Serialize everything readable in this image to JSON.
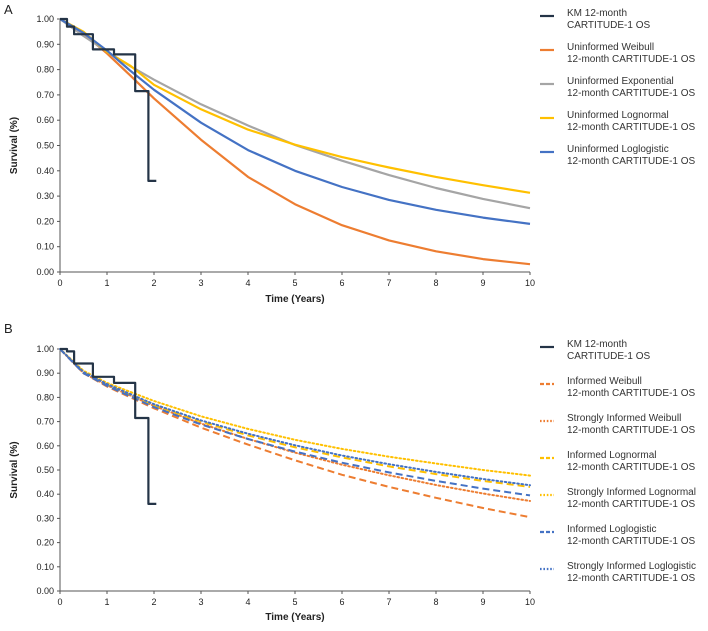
{
  "chart_data": [
    {
      "panel_label": "A",
      "type": "line",
      "xlabel": "Time (Years)",
      "ylabel": "Survival (%)",
      "xlim": [
        0,
        10
      ],
      "ylim": [
        0,
        1
      ],
      "x_ticks": [
        "0",
        "1",
        "2",
        "3",
        "4",
        "5",
        "6",
        "7",
        "8",
        "9",
        "10"
      ],
      "y_ticks": [
        "0.00",
        "0.10",
        "0.20",
        "0.30",
        "0.40",
        "0.50",
        "0.60",
        "0.70",
        "0.80",
        "0.90",
        "1.00"
      ],
      "series": [
        {
          "name_line1": "KM 12-month",
          "name_line2": "CARTITUDE-1 OS",
          "color": "#243447",
          "style": "step",
          "points": [
            [
              0,
              1.0
            ],
            [
              0.15,
              1.0
            ],
            [
              0.15,
              0.97
            ],
            [
              0.3,
              0.97
            ],
            [
              0.3,
              0.94
            ],
            [
              0.7,
              0.94
            ],
            [
              0.7,
              0.88
            ],
            [
              1.15,
              0.88
            ],
            [
              1.15,
              0.86
            ],
            [
              1.6,
              0.86
            ],
            [
              1.6,
              0.715
            ],
            [
              1.88,
              0.715
            ],
            [
              1.88,
              0.36
            ],
            [
              2.05,
              0.36
            ]
          ]
        },
        {
          "name_line1": "Uninformed Weibull",
          "name_line2": "12-month CARTITUDE-1 OS",
          "color": "#ED7D31",
          "style": "solid",
          "points": [
            [
              0,
              1.0
            ],
            [
              0.5,
              0.942
            ],
            [
              1,
              0.864
            ],
            [
              1.5,
              0.776
            ],
            [
              2,
              0.686
            ],
            [
              3,
              0.523
            ],
            [
              4,
              0.376
            ],
            [
              5,
              0.268
            ],
            [
              6,
              0.185
            ],
            [
              7,
              0.125
            ],
            [
              8,
              0.082
            ],
            [
              9,
              0.051
            ],
            [
              10,
              0.031
            ]
          ]
        },
        {
          "name_line1": "Uninformed Exponential",
          "name_line2": "12-month CARTITUDE-1 OS",
          "color": "#A5A5A5",
          "style": "solid",
          "points": [
            [
              0,
              1.0
            ],
            [
              0.5,
              0.933
            ],
            [
              1,
              0.871
            ],
            [
              1.5,
              0.813
            ],
            [
              2,
              0.76
            ],
            [
              3,
              0.663
            ],
            [
              4,
              0.579
            ],
            [
              5,
              0.502
            ],
            [
              6,
              0.44
            ],
            [
              7,
              0.383
            ],
            [
              8,
              0.332
            ],
            [
              9,
              0.289
            ],
            [
              10,
              0.252
            ]
          ]
        },
        {
          "name_line1": "Uninformed Lognormal",
          "name_line2": "12-month CARTITUDE-1 OS",
          "color": "#FFC000",
          "style": "solid",
          "points": [
            [
              0,
              1.0
            ],
            [
              0.5,
              0.95
            ],
            [
              1,
              0.87
            ],
            [
              1.5,
              0.815
            ],
            [
              2,
              0.74
            ],
            [
              3,
              0.643
            ],
            [
              4,
              0.563
            ],
            [
              5,
              0.503
            ],
            [
              6,
              0.454
            ],
            [
              7,
              0.413
            ],
            [
              8,
              0.376
            ],
            [
              9,
              0.343
            ],
            [
              10,
              0.313
            ]
          ]
        },
        {
          "name_line1": "Uninformed Loglogistic",
          "name_line2": "12-month CARTITUDE-1 OS",
          "color": "#4472C4",
          "style": "solid",
          "points": [
            [
              0,
              1.0
            ],
            [
              0.5,
              0.945
            ],
            [
              1,
              0.875
            ],
            [
              1.5,
              0.795
            ],
            [
              2,
              0.72
            ],
            [
              3,
              0.59
            ],
            [
              4,
              0.482
            ],
            [
              5,
              0.4
            ],
            [
              6,
              0.336
            ],
            [
              7,
              0.285
            ],
            [
              8,
              0.246
            ],
            [
              9,
              0.215
            ],
            [
              10,
              0.19
            ]
          ]
        }
      ]
    },
    {
      "panel_label": "B",
      "type": "line",
      "xlabel": "Time (Years)",
      "ylabel": "Survival (%)",
      "xlim": [
        0,
        10
      ],
      "ylim": [
        0,
        1
      ],
      "x_ticks": [
        "0",
        "1",
        "2",
        "3",
        "4",
        "5",
        "6",
        "7",
        "8",
        "9",
        "10"
      ],
      "y_ticks": [
        "0.00",
        "0.10",
        "0.20",
        "0.30",
        "0.40",
        "0.50",
        "0.60",
        "0.70",
        "0.80",
        "0.90",
        "1.00"
      ],
      "series": [
        {
          "name_line1": "KM 12-month",
          "name_line2": "CARTITUDE-1 OS",
          "color": "#243447",
          "style": "step",
          "points": [
            [
              0,
              1.0
            ],
            [
              0.15,
              1.0
            ],
            [
              0.15,
              0.99
            ],
            [
              0.3,
              0.99
            ],
            [
              0.3,
              0.94
            ],
            [
              0.7,
              0.94
            ],
            [
              0.7,
              0.885
            ],
            [
              1.15,
              0.885
            ],
            [
              1.15,
              0.86
            ],
            [
              1.6,
              0.86
            ],
            [
              1.6,
              0.715
            ],
            [
              1.88,
              0.715
            ],
            [
              1.88,
              0.36
            ],
            [
              2.05,
              0.36
            ]
          ]
        },
        {
          "name_line1": "Informed Weibull",
          "name_line2": "12-month CARTITUDE-1 OS",
          "color": "#ED7D31",
          "style": "dashed",
          "points": [
            [
              0,
              1.0
            ],
            [
              0.5,
              0.9
            ],
            [
              1,
              0.845
            ],
            [
              2,
              0.755
            ],
            [
              3,
              0.675
            ],
            [
              4,
              0.605
            ],
            [
              5,
              0.54
            ],
            [
              6,
              0.48
            ],
            [
              7,
              0.43
            ],
            [
              8,
              0.385
            ],
            [
              9,
              0.343
            ],
            [
              10,
              0.305
            ]
          ]
        },
        {
          "name_line1": "Strongly Informed Weibull",
          "name_line2": "12-month CARTITUDE-1 OS",
          "color": "#ED7D31",
          "style": "dotted",
          "points": [
            [
              0,
              1.0
            ],
            [
              0.5,
              0.9
            ],
            [
              1,
              0.85
            ],
            [
              2,
              0.765
            ],
            [
              3,
              0.692
            ],
            [
              4,
              0.628
            ],
            [
              5,
              0.572
            ],
            [
              6,
              0.522
            ],
            [
              7,
              0.478
            ],
            [
              8,
              0.438
            ],
            [
              9,
              0.403
            ],
            [
              10,
              0.372
            ]
          ]
        },
        {
          "name_line1": "Informed Lognormal",
          "name_line2": "12-month CARTITUDE-1 OS",
          "color": "#FFC000",
          "style": "dashed",
          "points": [
            [
              0,
              1.0
            ],
            [
              0.5,
              0.905
            ],
            [
              1,
              0.853
            ],
            [
              2,
              0.768
            ],
            [
              3,
              0.7
            ],
            [
              4,
              0.643
            ],
            [
              5,
              0.594
            ],
            [
              6,
              0.552
            ],
            [
              7,
              0.515
            ],
            [
              8,
              0.483
            ],
            [
              9,
              0.455
            ],
            [
              10,
              0.43
            ]
          ]
        },
        {
          "name_line1": "Strongly Informed Lognormal",
          "name_line2": "12-month CARTITUDE-1 OS",
          "color": "#FFC000",
          "style": "dotted",
          "points": [
            [
              0,
              1.0
            ],
            [
              0.5,
              0.91
            ],
            [
              1,
              0.86
            ],
            [
              2,
              0.785
            ],
            [
              3,
              0.722
            ],
            [
              4,
              0.67
            ],
            [
              5,
              0.625
            ],
            [
              6,
              0.587
            ],
            [
              7,
              0.555
            ],
            [
              8,
              0.527
            ],
            [
              9,
              0.5
            ],
            [
              10,
              0.477
            ]
          ]
        },
        {
          "name_line1": "Informed Loglogistic",
          "name_line2": "12-month CARTITUDE-1 OS",
          "color": "#4472C4",
          "style": "dashed",
          "points": [
            [
              0,
              1.0
            ],
            [
              0.5,
              0.9
            ],
            [
              1,
              0.848
            ],
            [
              2,
              0.76
            ],
            [
              3,
              0.688
            ],
            [
              4,
              0.628
            ],
            [
              5,
              0.576
            ],
            [
              6,
              0.53
            ],
            [
              7,
              0.49
            ],
            [
              8,
              0.455
            ],
            [
              9,
              0.423
            ],
            [
              10,
              0.395
            ]
          ]
        },
        {
          "name_line1": "Strongly Informed Loglogistic",
          "name_line2": "12-month CARTITUDE-1 OS",
          "color": "#4472C4",
          "style": "dotted",
          "points": [
            [
              0,
              1.0
            ],
            [
              0.5,
              0.905
            ],
            [
              1,
              0.855
            ],
            [
              2,
              0.772
            ],
            [
              3,
              0.705
            ],
            [
              4,
              0.65
            ],
            [
              5,
              0.602
            ],
            [
              6,
              0.56
            ],
            [
              7,
              0.524
            ],
            [
              8,
              0.492
            ],
            [
              9,
              0.463
            ],
            [
              10,
              0.437
            ]
          ]
        }
      ]
    }
  ]
}
